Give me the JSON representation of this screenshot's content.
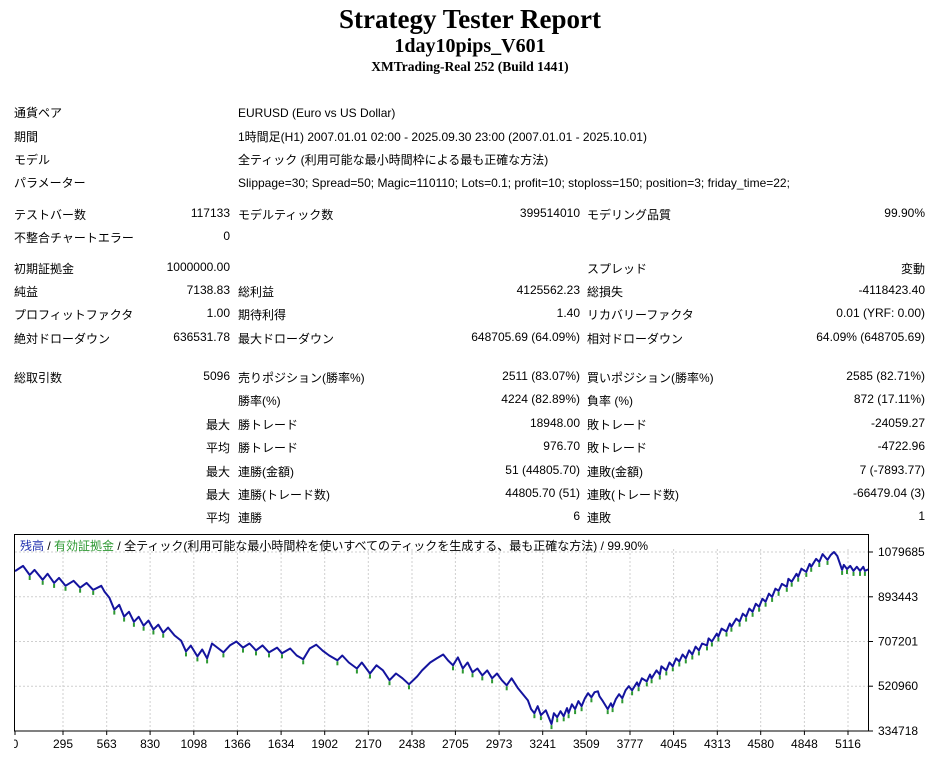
{
  "header": {
    "title": "Strategy Tester Report",
    "ea_name": "1day10pips_V601",
    "server": "XMTrading-Real 252 (Build 1441)"
  },
  "report": {
    "rows": [
      {
        "l1": "通貨ペア",
        "full": "EURUSD (Euro vs US Dollar)"
      },
      {
        "l1": "期間",
        "full": "1時間足(H1) 2007.01.01 02:00 - 2025.09.30 23:00 (2007.01.01 - 2025.10.01)"
      },
      {
        "l1": "モデル",
        "full": "全ティック (利用可能な最小時間枠による最も正確な方法)"
      },
      {
        "l1": "パラメーター",
        "full": "Slippage=30; Spread=50; Magic=110110; Lots=0.1; profit=10; stoploss=150; position=3; friday_time=22;"
      },
      {
        "l1": "テストバー数",
        "v1": "117133",
        "l2": "モデルティック数",
        "v2": "399514010",
        "l3": "モデリング品質",
        "v3": "99.90%"
      },
      {
        "l1": "不整合チャートエラー",
        "v1": "0"
      },
      {
        "l1": "初期証拠金",
        "v1": "1000000.00",
        "l3": "スプレッド",
        "v3": "変動"
      },
      {
        "l1": "純益",
        "v1": "7138.83",
        "l2": "総利益",
        "v2": "4125562.23",
        "l3": "総損失",
        "v3": "-4118423.40"
      },
      {
        "l1": "プロフィットファクタ",
        "v1": "1.00",
        "l2": "期待利得",
        "v2": "1.40",
        "l3": "リカバリーファクタ",
        "v3": "0.01 (YRF: 0.00)"
      },
      {
        "l1": "絶対ドローダウン",
        "v1": "636531.78",
        "l2": "最大ドローダウン",
        "v2": "648705.69 (64.09%)",
        "l3": "相対ドローダウン",
        "v3": "64.09% (648705.69)"
      },
      {
        "l1": "総取引数",
        "v1": "5096",
        "l2": "売りポジション(勝率%)",
        "v2": "2511 (83.07%)",
        "l3": "買いポジション(勝率%)",
        "v3": "2585 (82.71%)"
      },
      {
        "l2": "勝率(%)",
        "v2": "4224 (82.89%)",
        "l3": "負率 (%)",
        "v3": "872 (17.11%)"
      },
      {
        "v1": "最大",
        "l2": "勝トレード",
        "v2": "18948.00",
        "l3": "敗トレード",
        "v3": "-24059.27"
      },
      {
        "v1": "平均",
        "l2": "勝トレード",
        "v2": "976.70",
        "l3": "敗トレード",
        "v3": "-4722.96"
      },
      {
        "v1": "最大",
        "l2": "連勝(金額)",
        "v2": "51 (44805.70)",
        "l3": "連敗(金額)",
        "v3": "7 (-7893.77)"
      },
      {
        "v1": "最大",
        "l2": "連勝(トレード数)",
        "v2": "44805.70 (51)",
        "l3": "連敗(トレード数)",
        "v3": "-66479.04 (3)"
      },
      {
        "v1": "平均",
        "l2": "連勝",
        "v2": "6",
        "l3": "連敗",
        "v3": "1"
      }
    ]
  },
  "chart_data": {
    "type": "line",
    "legend": {
      "balance_label": "残高",
      "equity_label": "有効証拠金",
      "model_label": "全ティック(利用可能な最小時間枠を使いすべてのティックを生成する、最も正確な方法)",
      "quality": "99.90%",
      "separator": " / "
    },
    "colors": {
      "balance": "#14149E",
      "equity": "#2E9933",
      "grid": "#CFCFCF",
      "axis": "#000000"
    },
    "xlabel": "",
    "ylabel": "",
    "x_ticks": [
      0,
      295,
      563,
      830,
      1098,
      1366,
      1634,
      1902,
      2170,
      2438,
      2705,
      2973,
      3241,
      3509,
      3777,
      4045,
      4313,
      4580,
      4848,
      5116
    ],
    "y_ticks": [
      1079685,
      893443,
      707201,
      520960,
      334718
    ],
    "x_range": [
      0,
      5240
    ],
    "y_range": [
      334718,
      1079685
    ],
    "grid": true,
    "legend_position": "top-left-inside",
    "series": [
      {
        "name": "残高",
        "points": [
          [
            0,
            1000000
          ],
          [
            50,
            1022000
          ],
          [
            90,
            984000
          ],
          [
            120,
            1005000
          ],
          [
            170,
            964000
          ],
          [
            200,
            989000
          ],
          [
            240,
            951000
          ],
          [
            270,
            972000
          ],
          [
            310,
            939000
          ],
          [
            360,
            960000
          ],
          [
            400,
            931000
          ],
          [
            440,
            951000
          ],
          [
            480,
            922000
          ],
          [
            530,
            939000
          ],
          [
            550,
            914000
          ],
          [
            580,
            889000
          ],
          [
            610,
            840000
          ],
          [
            640,
            860000
          ],
          [
            670,
            811000
          ],
          [
            700,
            831000
          ],
          [
            730,
            789000
          ],
          [
            760,
            810000
          ],
          [
            790,
            773000
          ],
          [
            820,
            794000
          ],
          [
            850,
            757000
          ],
          [
            880,
            777000
          ],
          [
            910,
            744000
          ],
          [
            940,
            765000
          ],
          [
            980,
            732000
          ],
          [
            1020,
            711000
          ],
          [
            1050,
            666000
          ],
          [
            1080,
            690000
          ],
          [
            1120,
            645000
          ],
          [
            1150,
            674000
          ],
          [
            1180,
            637000
          ],
          [
            1210,
            699000
          ],
          [
            1250,
            678000
          ],
          [
            1280,
            662000
          ],
          [
            1320,
            691000
          ],
          [
            1360,
            707000
          ],
          [
            1400,
            682000
          ],
          [
            1440,
            699000
          ],
          [
            1480,
            670000
          ],
          [
            1520,
            691000
          ],
          [
            1560,
            662000
          ],
          [
            1610,
            682000
          ],
          [
            1640,
            658000
          ],
          [
            1690,
            678000
          ],
          [
            1730,
            649000
          ],
          [
            1770,
            633000
          ],
          [
            1810,
            678000
          ],
          [
            1850,
            694000
          ],
          [
            1890,
            669000
          ],
          [
            1930,
            649000
          ],
          [
            1980,
            629000
          ],
          [
            2010,
            649000
          ],
          [
            2050,
            620000
          ],
          [
            2100,
            595000
          ],
          [
            2130,
            620000
          ],
          [
            2180,
            574000
          ],
          [
            2220,
            608000
          ],
          [
            2260,
            587000
          ],
          [
            2300,
            546000
          ],
          [
            2340,
            574000
          ],
          [
            2380,
            554000
          ],
          [
            2420,
            529000
          ],
          [
            2470,
            562000
          ],
          [
            2500,
            587000
          ],
          [
            2550,
            620000
          ],
          [
            2590,
            637000
          ],
          [
            2630,
            653000
          ],
          [
            2660,
            628000
          ],
          [
            2690,
            608000
          ],
          [
            2720,
            641000
          ],
          [
            2750,
            595000
          ],
          [
            2780,
            620000
          ],
          [
            2810,
            579000
          ],
          [
            2840,
            595000
          ],
          [
            2870,
            566000
          ],
          [
            2900,
            587000
          ],
          [
            2930,
            554000
          ],
          [
            2960,
            574000
          ],
          [
            2990,
            546000
          ],
          [
            3020,
            525000
          ],
          [
            3050,
            554000
          ],
          [
            3090,
            512000
          ],
          [
            3120,
            487000
          ],
          [
            3150,
            462000
          ],
          [
            3170,
            426000
          ],
          [
            3190,
            409000
          ],
          [
            3210,
            438000
          ],
          [
            3230,
            401000
          ],
          [
            3260,
            421000
          ],
          [
            3280,
            388000
          ],
          [
            3295,
            363468
          ],
          [
            3310,
            409000
          ],
          [
            3330,
            392000
          ],
          [
            3350,
            417000
          ],
          [
            3370,
            396000
          ],
          [
            3390,
            430000
          ],
          [
            3400,
            409000
          ],
          [
            3420,
            446000
          ],
          [
            3440,
            426000
          ],
          [
            3460,
            459000
          ],
          [
            3480,
            438000
          ],
          [
            3500,
            471000
          ],
          [
            3520,
            492000
          ],
          [
            3540,
            475000
          ],
          [
            3560,
            496000
          ],
          [
            3580,
            500000
          ],
          [
            3590,
            479000
          ],
          [
            3610,
            459000
          ],
          [
            3640,
            426000
          ],
          [
            3660,
            450000
          ],
          [
            3670,
            434000
          ],
          [
            3690,
            467000
          ],
          [
            3710,
            488000
          ],
          [
            3730,
            471000
          ],
          [
            3750,
            504000
          ],
          [
            3770,
            521000
          ],
          [
            3790,
            504000
          ],
          [
            3820,
            537000
          ],
          [
            3830,
            521000
          ],
          [
            3850,
            554000
          ],
          [
            3880,
            541000
          ],
          [
            3900,
            570000
          ],
          [
            3910,
            554000
          ],
          [
            3940,
            587000
          ],
          [
            3960,
            570000
          ],
          [
            3970,
            604000
          ],
          [
            4000,
            587000
          ],
          [
            4020,
            620000
          ],
          [
            4040,
            604000
          ],
          [
            4060,
            637000
          ],
          [
            4080,
            624000
          ],
          [
            4100,
            653000
          ],
          [
            4120,
            637000
          ],
          [
            4140,
            670000
          ],
          [
            4160,
            653000
          ],
          [
            4180,
            686000
          ],
          [
            4200,
            670000
          ],
          [
            4220,
            699000
          ],
          [
            4250,
            691000
          ],
          [
            4260,
            720000
          ],
          [
            4280,
            707000
          ],
          [
            4310,
            740000
          ],
          [
            4320,
            728000
          ],
          [
            4340,
            761000
          ],
          [
            4370,
            749000
          ],
          [
            4390,
            782000
          ],
          [
            4400,
            769000
          ],
          [
            4430,
            802000
          ],
          [
            4450,
            790000
          ],
          [
            4470,
            823000
          ],
          [
            4490,
            811000
          ],
          [
            4510,
            844000
          ],
          [
            4530,
            831000
          ],
          [
            4550,
            864000
          ],
          [
            4570,
            852000
          ],
          [
            4590,
            885000
          ],
          [
            4610,
            873000
          ],
          [
            4630,
            906000
          ],
          [
            4650,
            893000
          ],
          [
            4670,
            927000
          ],
          [
            4690,
            918000
          ],
          [
            4710,
            947000
          ],
          [
            4740,
            935000
          ],
          [
            4750,
            968000
          ],
          [
            4770,
            956000
          ],
          [
            4800,
            989000
          ],
          [
            4810,
            977000
          ],
          [
            4830,
            1010000
          ],
          [
            4860,
            997000
          ],
          [
            4880,
            1030000
          ],
          [
            4890,
            1018000
          ],
          [
            4920,
            1051000
          ],
          [
            4940,
            1038000
          ],
          [
            4960,
            1071000
          ],
          [
            4990,
            1047000
          ],
          [
            5010,
            1067000
          ],
          [
            5030,
            1079685
          ],
          [
            5050,
            1063000
          ],
          [
            5080,
            1005000
          ],
          [
            5090,
            1026000
          ],
          [
            5110,
            1009000
          ],
          [
            5130,
            1022000
          ],
          [
            5150,
            1001000
          ],
          [
            5170,
            1018000
          ],
          [
            5190,
            1001000
          ],
          [
            5210,
            1018000
          ],
          [
            5220,
            1001000
          ],
          [
            5240,
            1007139
          ]
        ]
      }
    ]
  }
}
